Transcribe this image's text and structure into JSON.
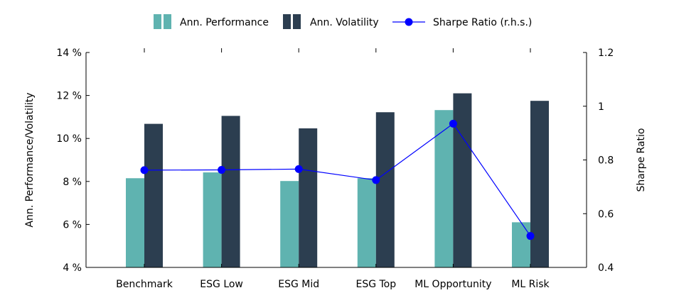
{
  "chart_data": {
    "type": "bar",
    "categories": [
      "Benchmark",
      "ESG Low",
      "ESG Mid",
      "ESG Top",
      "ML Opportunity",
      "ML Risk"
    ],
    "series": [
      {
        "name": "Ann. Performance",
        "type": "bar",
        "axis": "left",
        "color": "#5fb3b0",
        "values": [
          8.15,
          8.42,
          8.02,
          8.15,
          11.32,
          6.1
        ]
      },
      {
        "name": "Ann. Volatility",
        "type": "bar",
        "axis": "left",
        "color": "#2c3e50",
        "values": [
          10.68,
          11.05,
          10.47,
          11.22,
          12.1,
          11.75
        ]
      },
      {
        "name": "Sharpe Ratio (r.h.s.)",
        "type": "line",
        "axis": "right",
        "color": "#0000ff",
        "values": [
          0.762,
          0.763,
          0.766,
          0.725,
          0.935,
          0.517
        ]
      }
    ],
    "ylabel": "Ann. Performance/Volatility",
    "ylabel_right": "Sharpe Ratio",
    "ylim": [
      4,
      14
    ],
    "ylim_right": [
      0.4,
      1.2
    ],
    "yticks": [
      "4 %",
      "6 %",
      "8 %",
      "10 %",
      "12 %",
      "14 %"
    ],
    "yticks_right": [
      "0.4",
      "0.6",
      "0.8",
      "1",
      "1.2"
    ],
    "legend_position": "top-center",
    "grid": false
  }
}
